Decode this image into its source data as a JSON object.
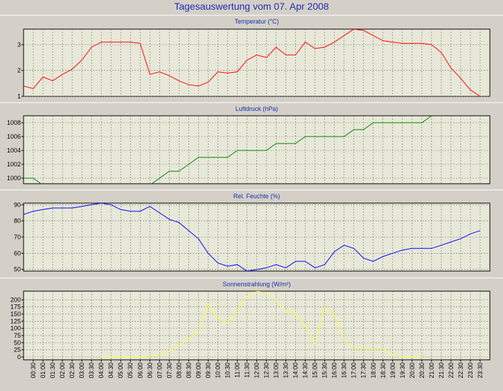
{
  "title": "Tagesauswertung vom 07. Apr 2008",
  "chart_data": [
    {
      "type": "line",
      "title": "Temperatur (°C)",
      "ylim": [
        1,
        3.6
      ],
      "yticks": [
        1,
        2,
        3
      ],
      "color": "#ff0000",
      "x_hours": [
        0.0,
        0.5,
        1.0,
        1.5,
        2.0,
        2.5,
        3.0,
        3.5,
        4.0,
        4.5,
        5.0,
        5.5,
        6.0,
        6.5,
        7.0,
        7.5,
        8.0,
        8.5,
        9.0,
        9.5,
        10.0,
        10.5,
        11.0,
        11.5,
        12.0,
        12.5,
        13.0,
        13.5,
        14.0,
        14.5,
        15.0,
        15.5,
        16.0,
        16.5,
        17.0,
        17.5,
        18.0,
        18.5,
        19.0,
        19.5,
        20.0,
        20.5,
        21.0,
        21.5,
        22.0,
        22.5,
        23.0,
        23.5
      ],
      "values": [
        1.4,
        1.3,
        1.75,
        1.6,
        1.85,
        2.05,
        2.4,
        2.9,
        3.1,
        3.1,
        3.1,
        3.1,
        3.05,
        1.85,
        1.95,
        1.8,
        1.6,
        1.45,
        1.4,
        1.55,
        1.95,
        1.9,
        1.95,
        2.4,
        2.6,
        2.5,
        2.9,
        2.6,
        2.6,
        3.1,
        2.85,
        2.9,
        3.1,
        3.35,
        3.6,
        3.55,
        3.35,
        3.15,
        3.1,
        3.05,
        3.05,
        3.05,
        3.0,
        2.7,
        2.1,
        1.7,
        1.25,
        1.0
      ],
      "grid": true
    },
    {
      "type": "line",
      "title": "Luftdruck (hPa)",
      "ylim": [
        999.2,
        1009
      ],
      "yticks": [
        1000,
        1002,
        1004,
        1006,
        1008
      ],
      "color": "#008000",
      "x_hours": [
        0.0,
        0.5,
        1.0,
        1.5,
        2.0,
        2.5,
        3.0,
        3.5,
        4.0,
        4.5,
        5.0,
        5.5,
        6.0,
        6.5,
        7.0,
        7.5,
        8.0,
        8.5,
        9.0,
        9.5,
        10.0,
        10.5,
        11.0,
        11.5,
        12.0,
        12.5,
        13.0,
        13.5,
        14.0,
        14.5,
        15.0,
        15.5,
        16.0,
        16.5,
        17.0,
        17.5,
        18.0,
        18.5,
        19.0,
        19.5,
        20.0,
        20.5,
        21.0
      ],
      "values": [
        1000,
        1000,
        999,
        999,
        999,
        999,
        999,
        999,
        999,
        999,
        999,
        999,
        999,
        999,
        1000,
        1001,
        1001,
        1002,
        1003,
        1003,
        1003,
        1003,
        1004,
        1004,
        1004,
        1004,
        1005,
        1005,
        1005,
        1006,
        1006,
        1006,
        1006,
        1006,
        1007,
        1007,
        1008,
        1008,
        1008,
        1008,
        1008,
        1008,
        1009
      ],
      "grid": true
    },
    {
      "type": "line",
      "title": "Rel. Feuchte (%)",
      "ylim": [
        49,
        91
      ],
      "yticks": [
        50,
        60,
        70,
        80,
        90
      ],
      "color": "#0000ff",
      "x_hours": [
        0.0,
        0.5,
        1.0,
        1.5,
        2.0,
        2.5,
        3.0,
        3.5,
        4.0,
        4.5,
        5.0,
        5.5,
        6.0,
        6.5,
        7.0,
        7.5,
        8.0,
        8.5,
        9.0,
        9.5,
        10.0,
        10.5,
        11.0,
        11.5,
        12.0,
        12.5,
        13.0,
        13.5,
        14.0,
        14.5,
        15.0,
        15.5,
        16.0,
        16.5,
        17.0,
        17.5,
        18.0,
        18.5,
        19.0,
        19.5,
        20.0,
        20.5,
        21.0,
        21.5,
        22.0,
        22.5,
        23.0,
        23.5
      ],
      "values": [
        84,
        86,
        87,
        88,
        88,
        88,
        89,
        90,
        91,
        90,
        87,
        86,
        86,
        89,
        85,
        81,
        79,
        74,
        69,
        60,
        54,
        52,
        53,
        49,
        50,
        51,
        53,
        51,
        55,
        55,
        51,
        53,
        61,
        65,
        63,
        57,
        55,
        58,
        60,
        62,
        63,
        63,
        63,
        65,
        67,
        69,
        72,
        74
      ],
      "grid": true
    },
    {
      "type": "line",
      "title": "Sonnenstrahlung (W/m²)",
      "ylim": [
        -10,
        230
      ],
      "yticks": [
        0,
        25,
        50,
        75,
        100,
        125,
        150,
        175,
        200
      ],
      "color": "#ffff40",
      "x_hours": [
        4.0,
        4.5,
        5.0,
        5.5,
        6.0,
        6.5,
        7.0,
        7.5,
        8.0,
        8.5,
        9.0,
        9.5,
        10.0,
        10.5,
        11.0,
        11.5,
        12.0,
        12.5,
        13.0,
        13.5,
        14.0,
        14.5,
        15.0,
        15.5,
        16.0,
        16.5,
        17.0,
        17.5,
        18.0,
        18.5,
        19.0,
        19.5,
        20.0,
        20.5
      ],
      "values": [
        0,
        0,
        0,
        0,
        0,
        2,
        8,
        22,
        40,
        65,
        85,
        185,
        135,
        120,
        165,
        210,
        230,
        225,
        200,
        160,
        150,
        110,
        45,
        175,
        145,
        60,
        30,
        30,
        30,
        30,
        5,
        0,
        0,
        0
      ],
      "grid": true
    }
  ],
  "x_axis": {
    "tick_labels": [
      "00:30",
      "01:00",
      "01:30",
      "02:00",
      "02:30",
      "03:00",
      "03:30",
      "04:00",
      "04:30",
      "05:00",
      "05:30",
      "06:00",
      "06:30",
      "07:00",
      "07:30",
      "08:00",
      "08:30",
      "09:00",
      "09:30",
      "10:00",
      "10:30",
      "11:00",
      "11:30",
      "12:00",
      "12:30",
      "13:00",
      "13:30",
      "14:00",
      "14:30",
      "15:00",
      "15:30",
      "16:00",
      "16:30",
      "17:00",
      "17:30",
      "18:00",
      "18:30",
      "19:00",
      "19:30",
      "20:00",
      "20:30",
      "21:00",
      "21:30",
      "22:00",
      "22:30",
      "23:00",
      "23:30"
    ]
  }
}
